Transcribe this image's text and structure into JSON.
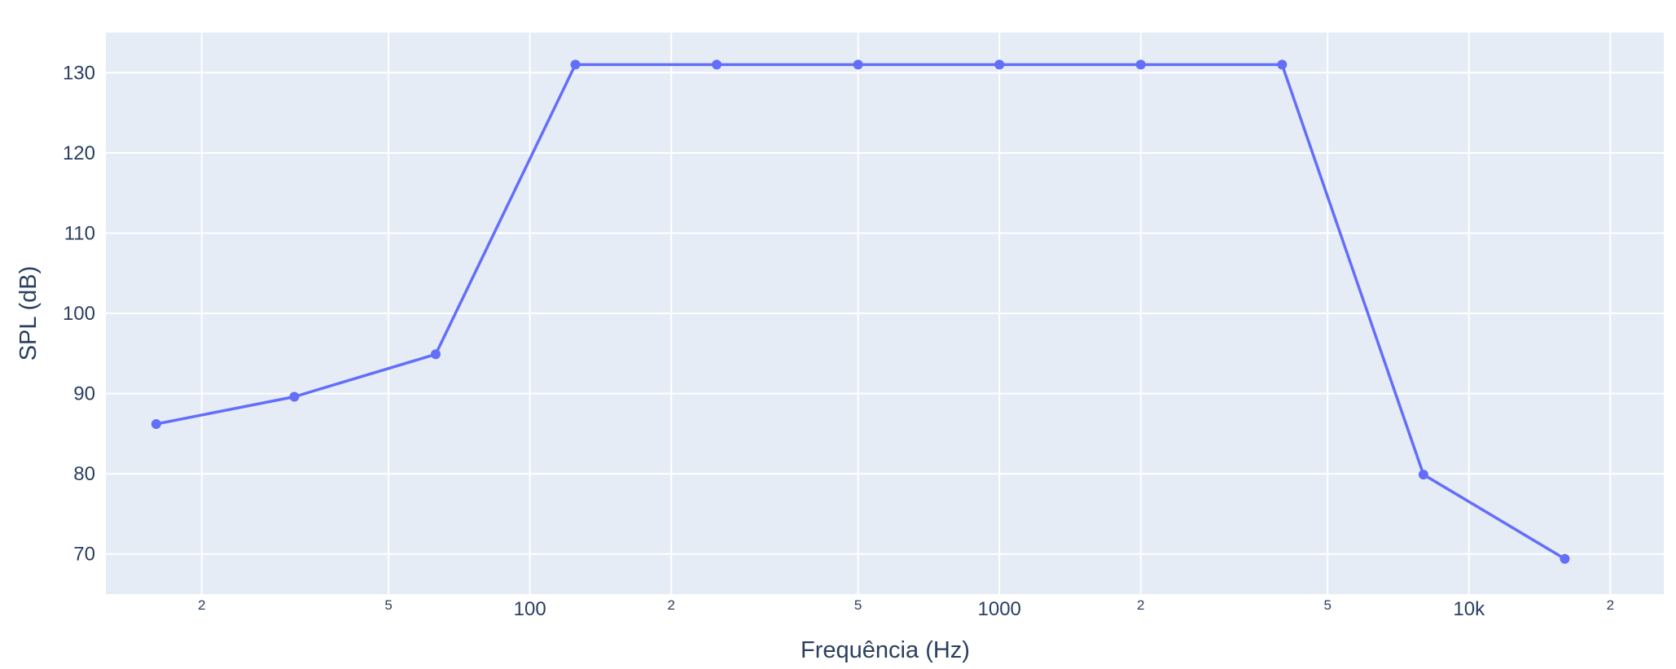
{
  "chart_data": {
    "type": "line",
    "xlabel": "Frequência (Hz)",
    "ylabel": "SPL (dB)",
    "x_scale": "log",
    "x_range": [
      12.5,
      26000
    ],
    "ylim": [
      65,
      135
    ],
    "grid": true,
    "colors": {
      "plot_bg": "#e5ecf6",
      "grid": "#ffffff",
      "line": "#636efa",
      "text": "#2a3f5f"
    },
    "x_ticks": [
      {
        "value": 20,
        "label": "2",
        "major": false
      },
      {
        "value": 50,
        "label": "5",
        "major": false
      },
      {
        "value": 100,
        "label": "100",
        "major": true
      },
      {
        "value": 200,
        "label": "2",
        "major": false
      },
      {
        "value": 500,
        "label": "5",
        "major": false
      },
      {
        "value": 1000,
        "label": "1000",
        "major": true
      },
      {
        "value": 2000,
        "label": "2",
        "major": false
      },
      {
        "value": 5000,
        "label": "5",
        "major": false
      },
      {
        "value": 10000,
        "label": "10k",
        "major": true
      },
      {
        "value": 20000,
        "label": "2",
        "major": false
      }
    ],
    "y_ticks": [
      70,
      80,
      90,
      100,
      110,
      120,
      130
    ],
    "series": [
      {
        "x": [
          16,
          31.5,
          63,
          125,
          250,
          500,
          1000,
          2000,
          4000,
          8000,
          16000
        ],
        "y": [
          86.2,
          89.6,
          94.9,
          131,
          131,
          131,
          131,
          131,
          131,
          79.9,
          69.4
        ]
      }
    ]
  }
}
